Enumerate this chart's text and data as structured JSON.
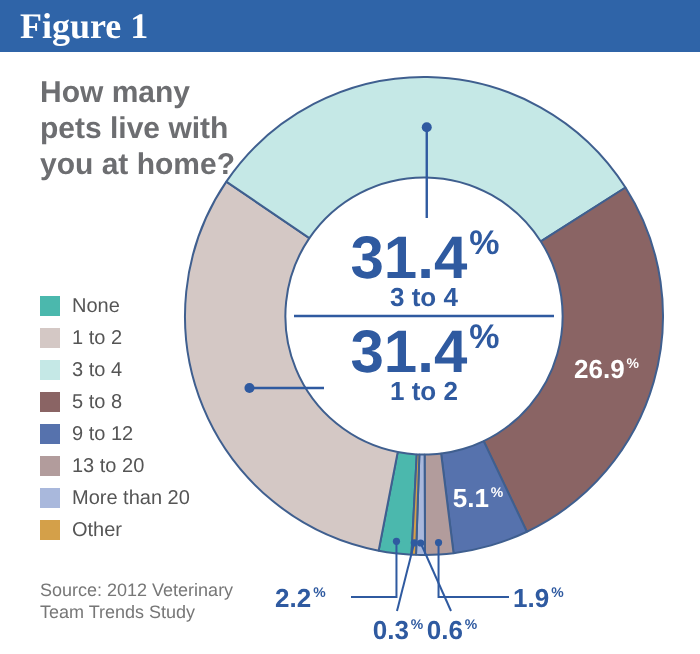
{
  "chart_data": {
    "type": "donut",
    "title": "Figure 1",
    "subtitle": "How many pets live with you at home?",
    "categories": [
      "None",
      "1 to 2",
      "3 to 4",
      "5 to 8",
      "9 to 12",
      "13 to 20",
      "More than 20",
      "Other"
    ],
    "values": [
      2.2,
      31.4,
      31.4,
      26.9,
      5.1,
      1.9,
      0.6,
      0.3
    ],
    "colors": [
      "#4bb8ad",
      "#d4c8c5",
      "#c5e8e6",
      "#8a6464",
      "#5672ad",
      "#b29c9c",
      "#a9b8dc",
      "#d4a049"
    ],
    "value_labels": [
      "2.2%",
      "31.4%",
      "31.4%",
      "26.9%",
      "5.1%",
      "1.9%",
      "0.6%",
      "0.3%"
    ],
    "legend": "left",
    "annotations": [
      "Source: 2012 Veterinary Team Trends Study"
    ]
  }
}
